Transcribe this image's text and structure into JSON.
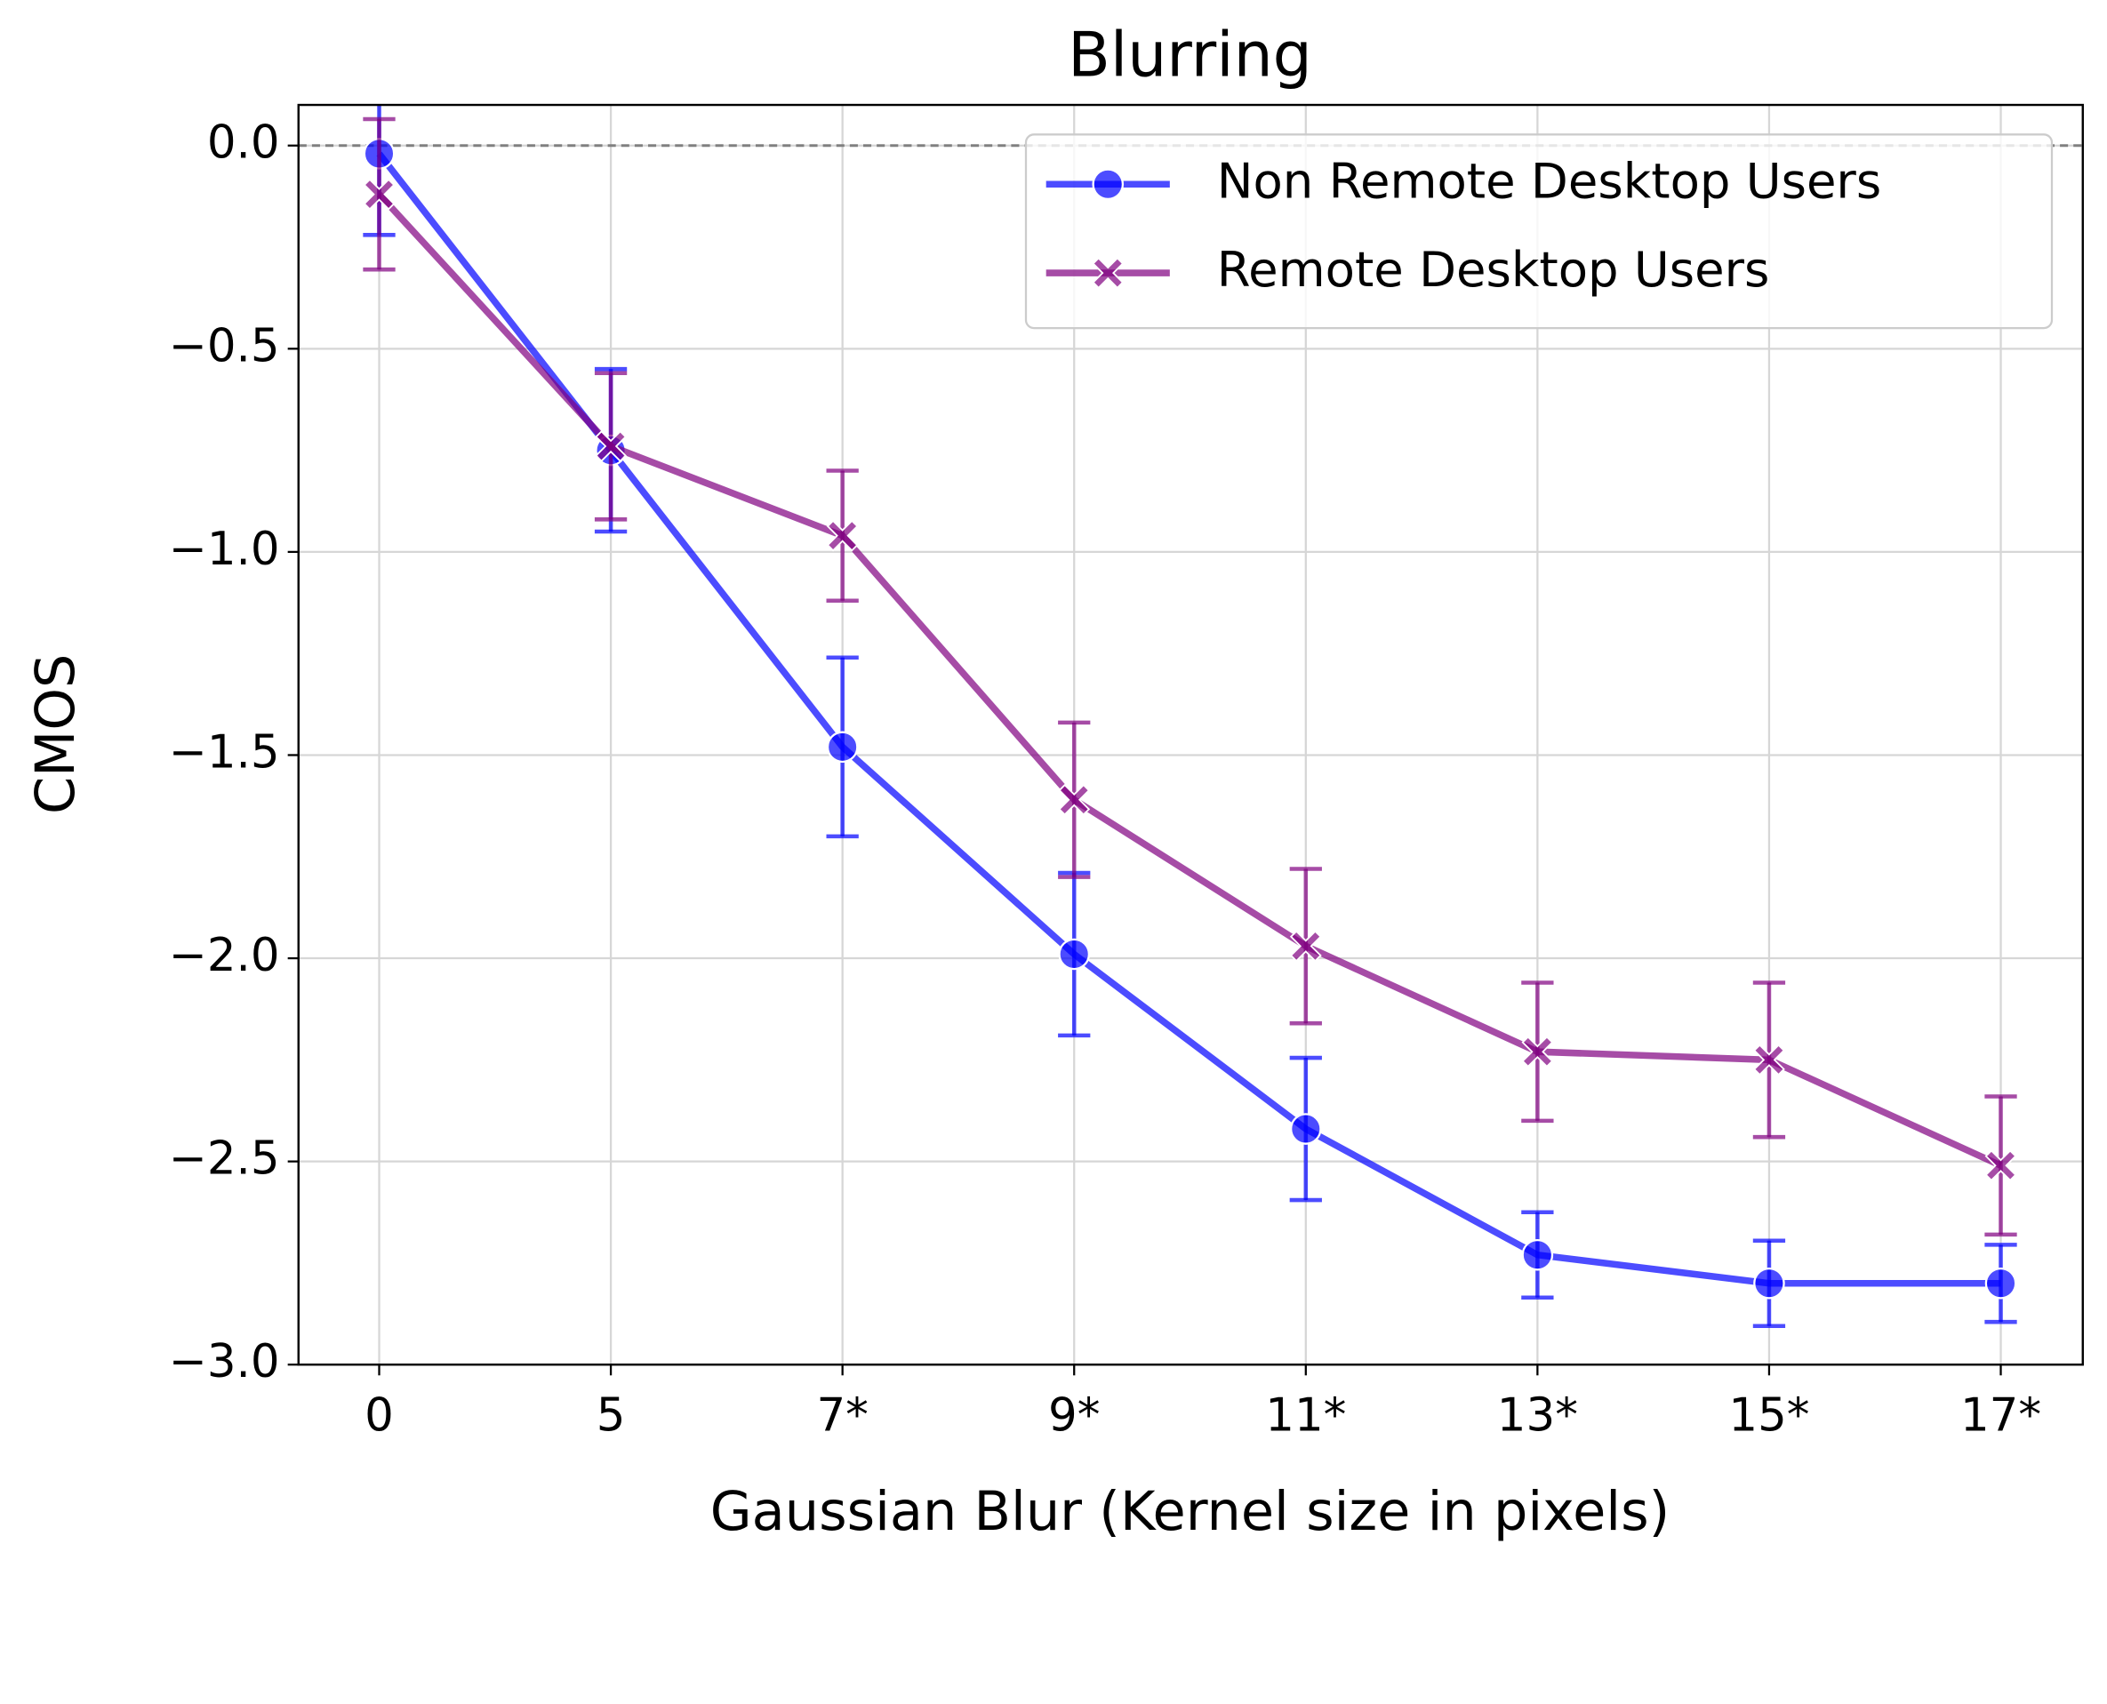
{
  "chart_data": {
    "type": "line",
    "title": "Blurring",
    "x_label": "Gaussian Blur (Kernel size in pixels)",
    "y_label": "CMOS",
    "categories": [
      "0",
      "5",
      "7*",
      "9*",
      "11*",
      "13*",
      "15*",
      "17*"
    ],
    "series": [
      {
        "name": "Non Remote Desktop Users",
        "color": "#0000ff",
        "marker": "circle",
        "values": [
          -0.02,
          -0.75,
          -1.48,
          -1.99,
          -2.42,
          -2.73,
          -2.8,
          -2.8
        ],
        "errors": [
          0.2,
          0.2,
          0.22,
          0.2,
          0.175,
          0.105,
          0.105,
          0.095
        ]
      },
      {
        "name": "Remote Desktop Users",
        "color": "#800080",
        "marker": "x",
        "values": [
          -0.12,
          -0.74,
          -0.96,
          -1.61,
          -1.97,
          -2.23,
          -2.25,
          -2.51
        ],
        "errors": [
          0.185,
          0.18,
          0.16,
          0.19,
          0.19,
          0.17,
          0.19,
          0.17
        ]
      }
    ],
    "ylim": [
      -3.0,
      0.1
    ],
    "yticks": [
      {
        "value": 0.0,
        "label": "0.0"
      },
      {
        "value": -0.5,
        "label": "−0.5"
      },
      {
        "value": -1.0,
        "label": "−1.0"
      },
      {
        "value": -1.5,
        "label": "−1.5"
      },
      {
        "value": -2.0,
        "label": "−2.0"
      },
      {
        "value": -2.5,
        "label": "−2.5"
      },
      {
        "value": -3.0,
        "label": "−3.0"
      }
    ],
    "reference_line": 0,
    "grid": true,
    "legend": "upper right"
  }
}
